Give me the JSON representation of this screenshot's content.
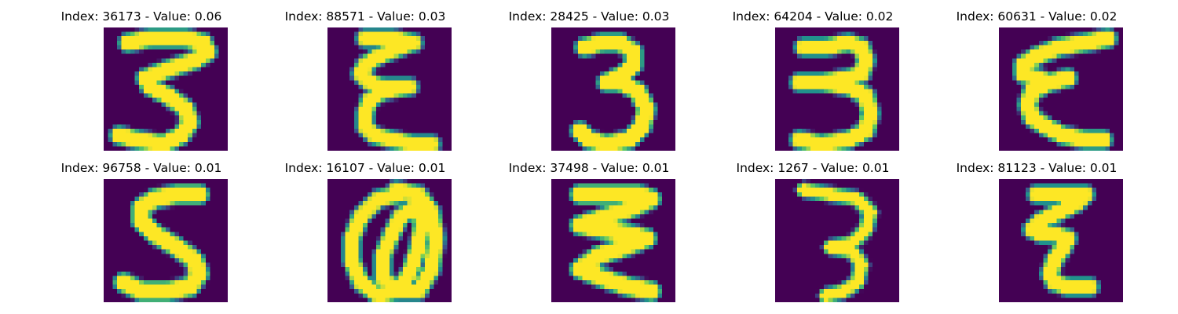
{
  "figure": {
    "colormap": "viridis",
    "background_color": "#440154",
    "panels": [
      {
        "title": "Index: 36173 - Value: 0.06",
        "glyph": "Z-shaped 3"
      },
      {
        "title": "Index: 88571 - Value: 0.03",
        "glyph": "epsilon"
      },
      {
        "title": "Index: 28425 - Value: 0.03",
        "glyph": "3"
      },
      {
        "title": "Index: 64204 - Value: 0.02",
        "glyph": "3"
      },
      {
        "title": "Index: 60631 - Value: 0.02",
        "glyph": "epsilon"
      },
      {
        "title": "Index: 96758 - Value: 0.01",
        "glyph": "S"
      },
      {
        "title": "Index: 16107 - Value: 0.01",
        "glyph": "at-sign"
      },
      {
        "title": "Index: 37498 - Value: 0.01",
        "glyph": "zigzag"
      },
      {
        "title": "Index: 1267 - Value: 0.01",
        "glyph": "3"
      },
      {
        "title": "Index: 81123 - Value: 0.01",
        "glyph": "Z-shaped epsilon"
      }
    ]
  }
}
